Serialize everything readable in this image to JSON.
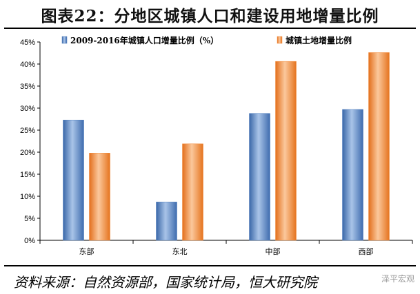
{
  "title": "图表22：分地区城镇人口和建设用地增量比例",
  "source": "资料来源：自然资源部，国家统计局，恒大研究院",
  "watermark": "泽平宏观",
  "colors": {
    "series1": "#4f7fbe",
    "series2": "#f28a3a"
  },
  "chart_data": {
    "type": "bar",
    "categories": [
      "东部",
      "东北",
      "中部",
      "西部"
    ],
    "series": [
      {
        "name": "2009-2016年城镇人口增量比例（%）",
        "values": [
          27.3,
          8.7,
          28.8,
          29.7
        ]
      },
      {
        "name": "城镇土地增量比例",
        "values": [
          19.8,
          21.9,
          40.6,
          42.6
        ]
      }
    ],
    "ylim": [
      0,
      45
    ],
    "yticks": [
      0,
      5,
      10,
      15,
      20,
      25,
      30,
      35,
      40,
      45
    ],
    "ytick_labels": [
      "0%",
      "5%",
      "10%",
      "15%",
      "20%",
      "25%",
      "30%",
      "35%",
      "40%",
      "45%"
    ],
    "legend_position": "top",
    "grid": false
  }
}
